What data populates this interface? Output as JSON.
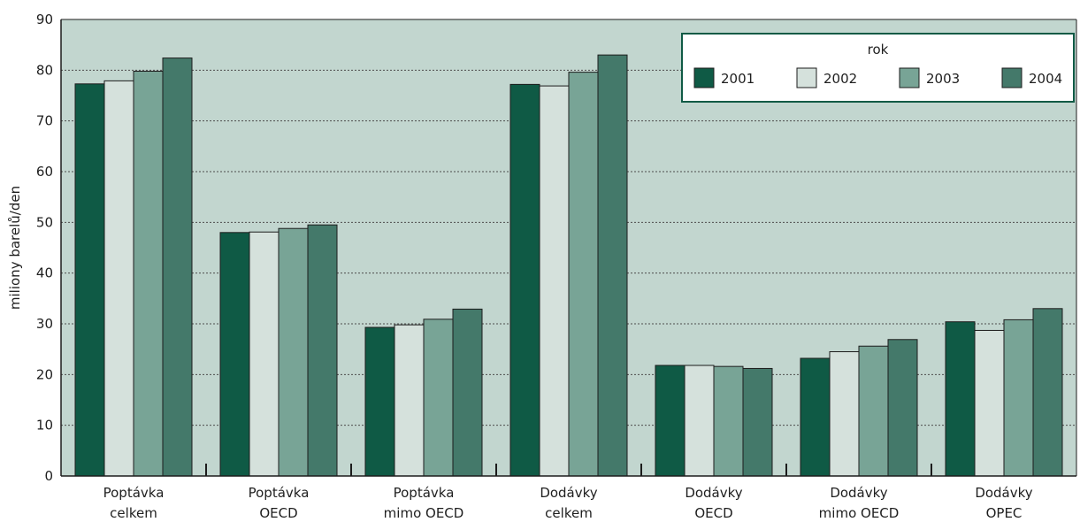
{
  "chart_data": {
    "type": "bar",
    "title": "",
    "ylabel": "miliony barelů/den",
    "xlabel": "",
    "ylim": [
      0,
      90
    ],
    "yticks": [
      0,
      10,
      20,
      30,
      40,
      50,
      60,
      70,
      80,
      90
    ],
    "grid": true,
    "categories": [
      [
        "Poptávka",
        "celkem"
      ],
      [
        "Poptávka",
        "OECD"
      ],
      [
        "Poptávka",
        "mimo OECD"
      ],
      [
        "Dodávky",
        "celkem"
      ],
      [
        "Dodávky",
        "OECD"
      ],
      [
        "Dodávky",
        "mimo OECD"
      ],
      [
        "Dodávky",
        "OPEC"
      ]
    ],
    "legend": {
      "title": "rok",
      "placement": "top-right"
    },
    "series": [
      {
        "name": "2001",
        "color": "#0f5a45",
        "values": [
          77.3,
          48.0,
          29.3,
          77.2,
          21.8,
          23.2,
          30.4
        ]
      },
      {
        "name": "2002",
        "color": "#d5e1dc",
        "values": [
          77.9,
          48.1,
          29.8,
          76.9,
          21.8,
          24.5,
          28.7
        ]
      },
      {
        "name": "2003",
        "color": "#78a496",
        "values": [
          79.8,
          48.8,
          30.9,
          79.6,
          21.6,
          25.6,
          30.8
        ]
      },
      {
        "name": "2004",
        "color": "#44796a",
        "values": [
          82.4,
          49.5,
          32.9,
          83.0,
          21.2,
          26.9,
          33.0
        ]
      }
    ],
    "plot_background": "#c2d6cf",
    "frame_color": "#0f5a45"
  }
}
